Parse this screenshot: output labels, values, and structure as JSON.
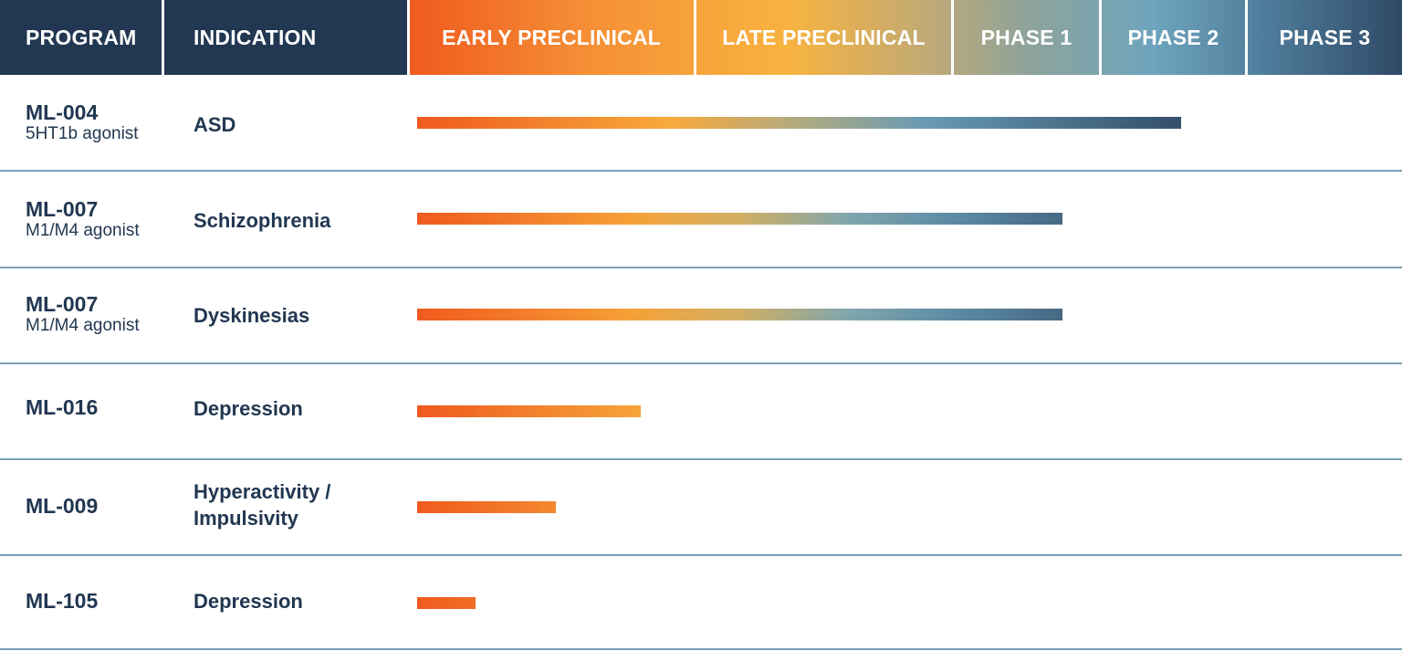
{
  "header": {
    "program": "PROGRAM",
    "indication": "INDICATION",
    "stages": [
      "EARLY PRECLINICAL",
      "LATE PRECLINICAL",
      "PHASE 1",
      "PHASE 2",
      "PHASE 3"
    ]
  },
  "colors": {
    "header_dark": "#223751",
    "text": "#223751",
    "divider": "#7a9fb6",
    "stage_gradient": [
      "#ef5a1e",
      "#f8b33f",
      "#6ea4bd",
      "#2f4a67"
    ]
  },
  "chart_data": {
    "type": "bar",
    "orientation": "horizontal",
    "categories": [
      "EARLY PRECLINICAL",
      "LATE PRECLINICAL",
      "PHASE 1",
      "PHASE 2",
      "PHASE 3"
    ],
    "rows": [
      {
        "program": "ML-004",
        "mechanism": "5HT1b agonist",
        "indication": "ASD",
        "progress_stages": 3.56
      },
      {
        "program": "ML-007",
        "mechanism": "M1/M4 agonist",
        "indication": "Schizophrenia",
        "progress_stages": 2.75
      },
      {
        "program": "ML-007",
        "mechanism": "M1/M4 agonist",
        "indication": "Dyskinesias",
        "progress_stages": 2.75
      },
      {
        "program": "ML-016",
        "mechanism": "",
        "indication": "Depression",
        "progress_stages": 0.81
      },
      {
        "program": "ML-009",
        "mechanism": "",
        "indication": "Hyperactivity / Impulsivity",
        "progress_stages": 0.5
      },
      {
        "program": "ML-105",
        "mechanism": "",
        "indication": "Depression",
        "progress_stages": 0.21
      }
    ],
    "xlim": [
      0,
      5
    ]
  }
}
